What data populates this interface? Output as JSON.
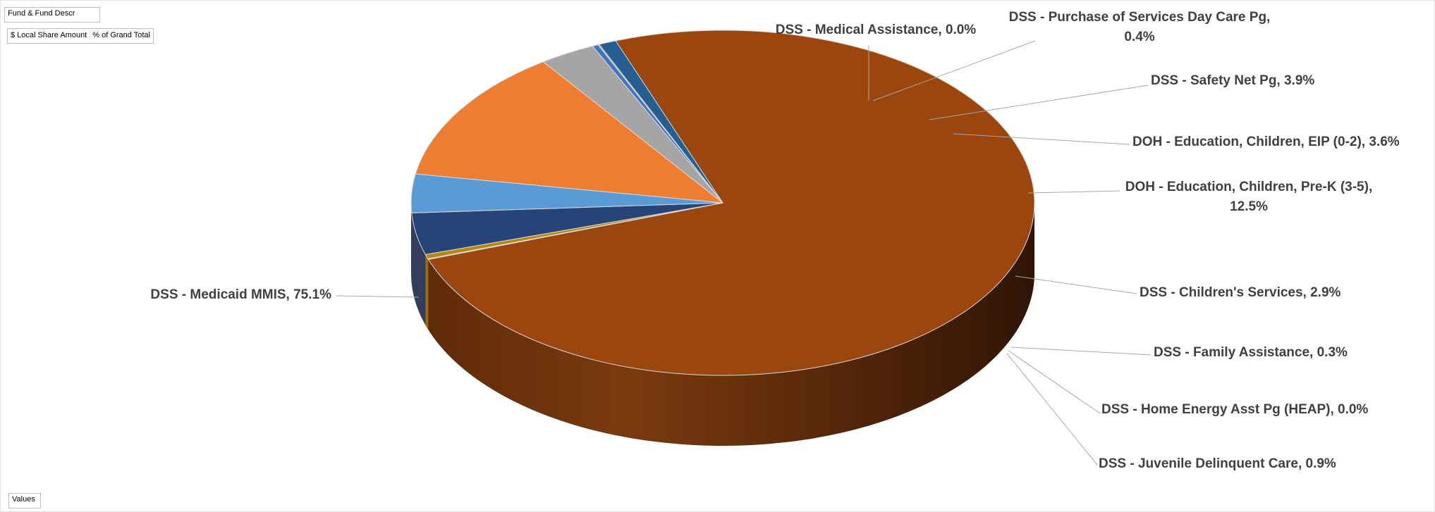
{
  "pivot_fields": {
    "filter_field": "Fund & Fund Descr",
    "value_field_1": "$ Local Share Amount",
    "value_field_2": "% of Grand Total",
    "values_field": "Values"
  },
  "chart_data": {
    "type": "pie",
    "style": "3d",
    "title": "",
    "series": [
      {
        "name": "DSS - Medicaid MMIS",
        "label": "DSS - Medicaid MMIS, 75.1%",
        "value": 75.1,
        "color": "#9c460f"
      },
      {
        "name": "DSS - Medical Assistance",
        "label": "DSS - Medical Assistance, 0.0%",
        "value": 0.0,
        "color": "#5a7a2e"
      },
      {
        "name": "DSS - Purchase of Services Day Care Pg",
        "label": "DSS - Purchase of Services Day Care Pg, 0.4%",
        "value": 0.4,
        "color": "#b8860b"
      },
      {
        "name": "DSS - Safety Net Pg",
        "label": "DSS - Safety Net Pg, 3.9%",
        "value": 3.9,
        "color": "#264478"
      },
      {
        "name": "DOH - Education, Children, EIP (0-2)",
        "label": "DOH - Education, Children, EIP (0-2), 3.6%",
        "value": 3.6,
        "color": "#5b9bd5"
      },
      {
        "name": "DOH - Education, Children, Pre-K (3-5)",
        "label": "DOH - Education, Children, Pre-K (3-5), 12.5%",
        "value": 12.5,
        "color": "#ed7d31"
      },
      {
        "name": "DSS - Children's Services",
        "label": "DSS - Children's Services, 2.9%",
        "value": 2.9,
        "color": "#a5a5a5"
      },
      {
        "name": "DSS - Family Assistance",
        "label": "DSS - Family Assistance, 0.3%",
        "value": 0.3,
        "color": "#4472c4"
      },
      {
        "name": "DSS - Home Energy Asst Pg (HEAP)",
        "label": "DSS - Home Energy Asst Pg (HEAP), 0.0%",
        "value": 0.0,
        "color": "#70ad47"
      },
      {
        "name": "DSS - Juvenile Delinquent Care",
        "label": "DSS - Juvenile Delinquent Care, 0.9%",
        "value": 0.9,
        "color": "#255e91"
      }
    ]
  }
}
